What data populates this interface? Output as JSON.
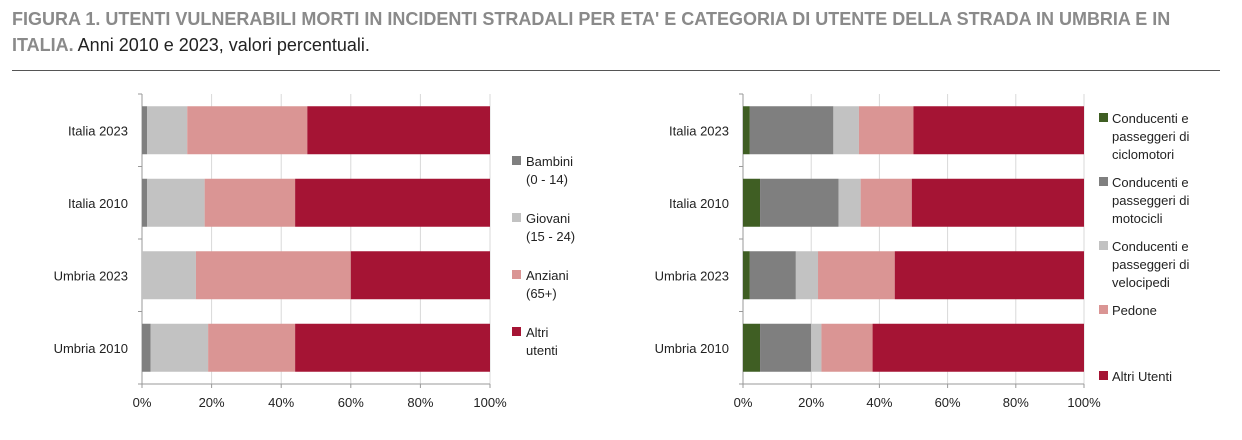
{
  "title": {
    "lead": "FIGURA 1. UTENTI VULNERABILI MORTI IN INCIDENTI STRADALI PER ETA' E CATEGORIA DI UTENTE DELLA STRADA IN UMBRIA E IN ITALIA.",
    "sub": "Anni 2010 e 2023, valori percentuali."
  },
  "chart_data": [
    {
      "type": "bar",
      "stacked": true,
      "orientation": "horizontal",
      "categories": [
        "Italia 2023",
        "Italia 2010",
        "Umbria 2023",
        "Umbria 2010"
      ],
      "series": [
        {
          "name": "Bambini (0 - 14)",
          "legend_lines": [
            "Bambini",
            "(0 - 14)"
          ],
          "color": "#7f7f7f",
          "values": [
            1.5,
            1.5,
            0,
            2.5
          ]
        },
        {
          "name": "Giovani (15 - 24)",
          "legend_lines": [
            "Giovani",
            "(15 - 24)"
          ],
          "color": "#c2c2c2",
          "values": [
            11.5,
            16.5,
            15.5,
            16.5
          ]
        },
        {
          "name": "Anziani (65+)",
          "legend_lines": [
            "Anziani",
            "(65+)"
          ],
          "color": "#da9594",
          "values": [
            34.5,
            26,
            44.5,
            25
          ]
        },
        {
          "name": "Altri utenti",
          "legend_lines": [
            "Altri",
            "utenti"
          ],
          "color": "#a51434",
          "values": [
            52.5,
            56,
            40,
            56
          ]
        }
      ],
      "xlim": [
        0,
        100
      ],
      "x_ticks": [
        "0%",
        "20%",
        "40%",
        "60%",
        "80%",
        "100%"
      ],
      "grid": true,
      "legend_position": "right"
    },
    {
      "type": "bar",
      "stacked": true,
      "orientation": "horizontal",
      "categories": [
        "Italia 2023",
        "Italia 2010",
        "Umbria 2023",
        "Umbria 2010"
      ],
      "series": [
        {
          "name": "Conducenti e passeggeri di ciclomotori",
          "legend_lines": [
            "Conducenti e",
            "passeggeri di",
            "ciclomotori"
          ],
          "color": "#3f5e23",
          "values": [
            2,
            5,
            2,
            5
          ]
        },
        {
          "name": "Conducenti e passeggeri di motocicli",
          "legend_lines": [
            "Conducenti e",
            "passeggeri di",
            "motocicli"
          ],
          "color": "#7f7f7f",
          "values": [
            24.5,
            23,
            13.5,
            15
          ]
        },
        {
          "name": "Conducenti e passeggeri di velocipedi",
          "legend_lines": [
            "Conducenti e",
            "passeggeri di",
            "velocipedi"
          ],
          "color": "#c2c2c2",
          "values": [
            7.5,
            6.5,
            6.5,
            3
          ]
        },
        {
          "name": "Pedone",
          "legend_lines": [
            "Pedone"
          ],
          "color": "#da9594",
          "values": [
            16,
            15,
            22.5,
            15
          ]
        },
        {
          "name": "Altri Utenti",
          "legend_lines": [
            "Altri Utenti"
          ],
          "color": "#a51434",
          "values": [
            50,
            50.5,
            55.5,
            62
          ]
        }
      ],
      "xlim": [
        0,
        100
      ],
      "x_ticks": [
        "0%",
        "20%",
        "40%",
        "60%",
        "80%",
        "100%"
      ],
      "grid": true,
      "legend_position": "right"
    }
  ]
}
